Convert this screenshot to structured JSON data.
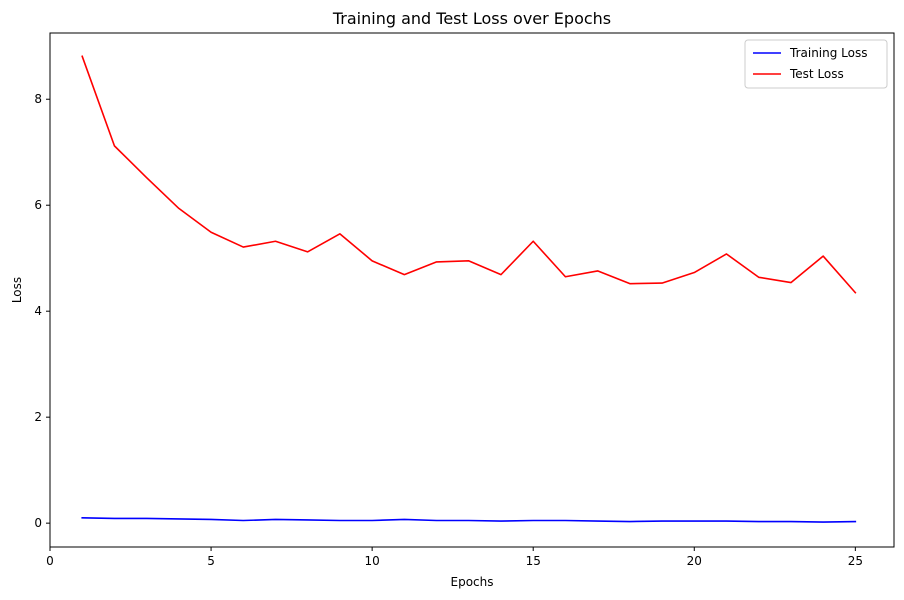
{
  "chart_data": {
    "type": "line",
    "title": "Training and Test Loss over Epochs",
    "xlabel": "Epochs",
    "ylabel": "Loss",
    "xlim": [
      0,
      26.2
    ],
    "ylim": [
      -0.45,
      9.25
    ],
    "xticks": [
      0,
      5,
      10,
      15,
      20,
      25
    ],
    "yticks": [
      0,
      2,
      4,
      6,
      8
    ],
    "grid": false,
    "legend_position": "top-right",
    "x": [
      1,
      2,
      3,
      4,
      5,
      6,
      7,
      8,
      9,
      10,
      11,
      12,
      13,
      14,
      15,
      16,
      17,
      18,
      19,
      20,
      21,
      22,
      23,
      24,
      25
    ],
    "series": [
      {
        "name": "Training Loss",
        "color": "#0000ff",
        "values": [
          0.1,
          0.09,
          0.09,
          0.08,
          0.07,
          0.05,
          0.07,
          0.06,
          0.05,
          0.05,
          0.07,
          0.05,
          0.05,
          0.04,
          0.05,
          0.05,
          0.04,
          0.03,
          0.04,
          0.04,
          0.04,
          0.03,
          0.03,
          0.02,
          0.03
        ]
      },
      {
        "name": "Test Loss",
        "color": "#ff0000",
        "values": [
          8.81,
          7.12,
          6.52,
          5.94,
          5.49,
          5.21,
          5.32,
          5.12,
          5.46,
          4.95,
          4.69,
          4.93,
          4.95,
          4.69,
          5.32,
          4.65,
          4.76,
          4.52,
          4.53,
          4.73,
          5.08,
          4.64,
          4.54,
          5.04,
          4.35
        ]
      }
    ]
  }
}
